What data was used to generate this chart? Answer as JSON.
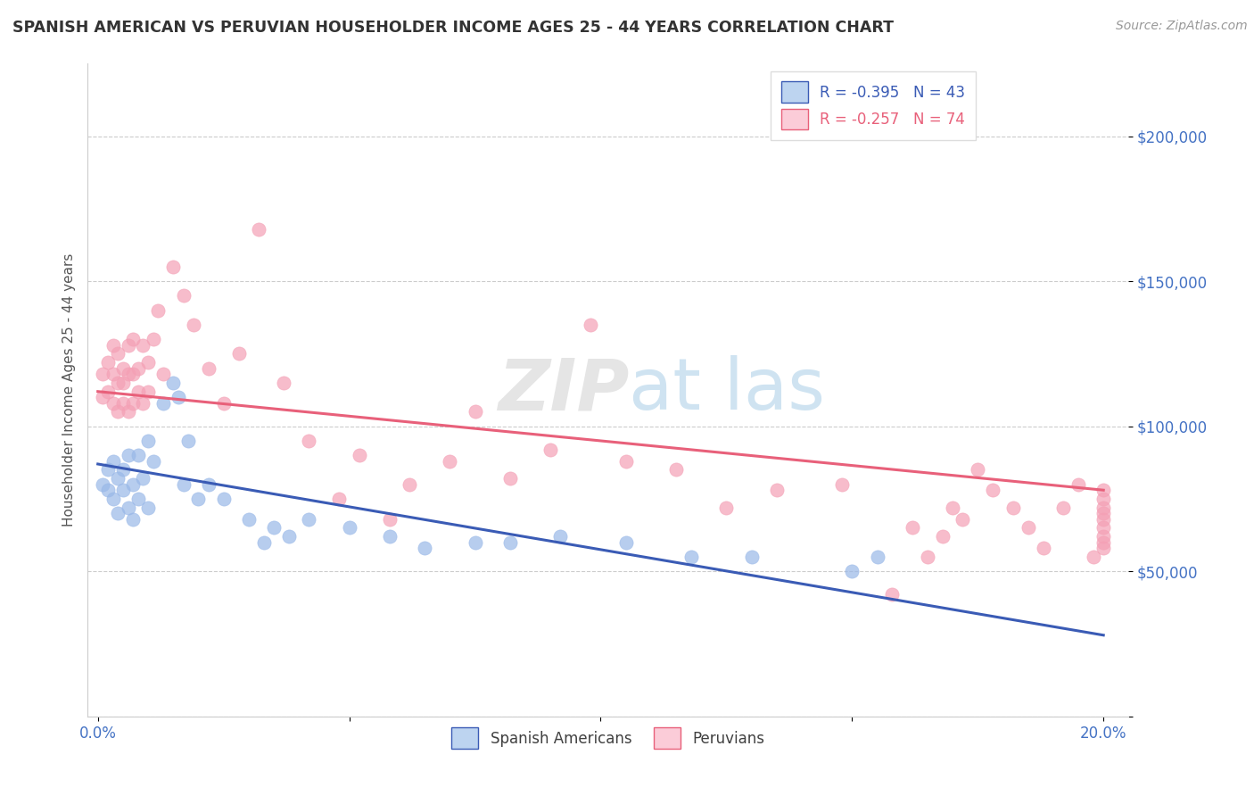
{
  "title": "SPANISH AMERICAN VS PERUVIAN HOUSEHOLDER INCOME AGES 25 - 44 YEARS CORRELATION CHART",
  "source": "Source: ZipAtlas.com",
  "ylabel": "Householder Income Ages 25 - 44 years",
  "xlim": [
    -0.002,
    0.205
  ],
  "ylim": [
    0,
    225000
  ],
  "yticks": [
    0,
    50000,
    100000,
    150000,
    200000
  ],
  "ytick_labels": [
    "",
    "$50,000",
    "$100,000",
    "$150,000",
    "$200,000"
  ],
  "xticks": [
    0.0,
    0.05,
    0.1,
    0.15,
    0.2
  ],
  "xtick_labels": [
    "0.0%",
    "",
    "",
    "",
    "20.0%"
  ],
  "legend_r_blue": "R = -0.395",
  "legend_n_blue": "N = 43",
  "legend_r_pink": "R = -0.257",
  "legend_n_pink": "N = 74",
  "blue_line_color": "#3A5BB5",
  "pink_line_color": "#E8607A",
  "blue_scatter_color": "#99B8E8",
  "pink_scatter_color": "#F4A0B5",
  "blue_patch_face": "#BDD4F0",
  "pink_patch_face": "#FBCCD8",
  "blue_patch_edge": "#3A5BB5",
  "pink_patch_edge": "#E8607A",
  "title_color": "#333333",
  "source_color": "#999999",
  "axis_tick_color": "#4472C4",
  "grid_color": "#CCCCCC",
  "watermark_color": "#CCCCCC",
  "blue_line_x0": 0.0,
  "blue_line_y0": 87000,
  "blue_line_x1": 0.2,
  "blue_line_y1": 28000,
  "pink_line_x0": 0.0,
  "pink_line_y0": 112000,
  "pink_line_x1": 0.2,
  "pink_line_y1": 78000,
  "spanish_americans_x": [
    0.001,
    0.002,
    0.002,
    0.003,
    0.003,
    0.004,
    0.004,
    0.005,
    0.005,
    0.006,
    0.006,
    0.007,
    0.007,
    0.008,
    0.008,
    0.009,
    0.01,
    0.01,
    0.011,
    0.013,
    0.015,
    0.016,
    0.017,
    0.018,
    0.02,
    0.022,
    0.025,
    0.03,
    0.033,
    0.035,
    0.038,
    0.042,
    0.05,
    0.058,
    0.065,
    0.075,
    0.082,
    0.092,
    0.105,
    0.118,
    0.13,
    0.15,
    0.155
  ],
  "spanish_americans_y": [
    80000,
    78000,
    85000,
    88000,
    75000,
    82000,
    70000,
    85000,
    78000,
    90000,
    72000,
    80000,
    68000,
    90000,
    75000,
    82000,
    95000,
    72000,
    88000,
    108000,
    115000,
    110000,
    80000,
    95000,
    75000,
    80000,
    75000,
    68000,
    60000,
    65000,
    62000,
    68000,
    65000,
    62000,
    58000,
    60000,
    60000,
    62000,
    60000,
    55000,
    55000,
    50000,
    55000
  ],
  "peruvians_x": [
    0.001,
    0.001,
    0.002,
    0.002,
    0.003,
    0.003,
    0.003,
    0.004,
    0.004,
    0.004,
    0.005,
    0.005,
    0.005,
    0.006,
    0.006,
    0.006,
    0.007,
    0.007,
    0.007,
    0.008,
    0.008,
    0.009,
    0.009,
    0.01,
    0.01,
    0.011,
    0.012,
    0.013,
    0.015,
    0.017,
    0.019,
    0.022,
    0.025,
    0.028,
    0.032,
    0.037,
    0.042,
    0.048,
    0.052,
    0.058,
    0.062,
    0.07,
    0.075,
    0.082,
    0.09,
    0.098,
    0.105,
    0.115,
    0.125,
    0.135,
    0.148,
    0.158,
    0.162,
    0.165,
    0.168,
    0.17,
    0.172,
    0.175,
    0.178,
    0.182,
    0.185,
    0.188,
    0.192,
    0.195,
    0.198,
    0.2,
    0.2,
    0.2,
    0.2,
    0.2,
    0.2,
    0.2,
    0.2,
    0.2
  ],
  "peruvians_y": [
    110000,
    118000,
    112000,
    122000,
    118000,
    108000,
    128000,
    115000,
    105000,
    125000,
    120000,
    108000,
    115000,
    118000,
    105000,
    128000,
    118000,
    108000,
    130000,
    120000,
    112000,
    128000,
    108000,
    122000,
    112000,
    130000,
    140000,
    118000,
    155000,
    145000,
    135000,
    120000,
    108000,
    125000,
    168000,
    115000,
    95000,
    75000,
    90000,
    68000,
    80000,
    88000,
    105000,
    82000,
    92000,
    135000,
    88000,
    85000,
    72000,
    78000,
    80000,
    42000,
    65000,
    55000,
    62000,
    72000,
    68000,
    85000,
    78000,
    72000,
    65000,
    58000,
    72000,
    80000,
    55000,
    62000,
    75000,
    68000,
    72000,
    78000,
    58000,
    65000,
    60000,
    70000
  ]
}
